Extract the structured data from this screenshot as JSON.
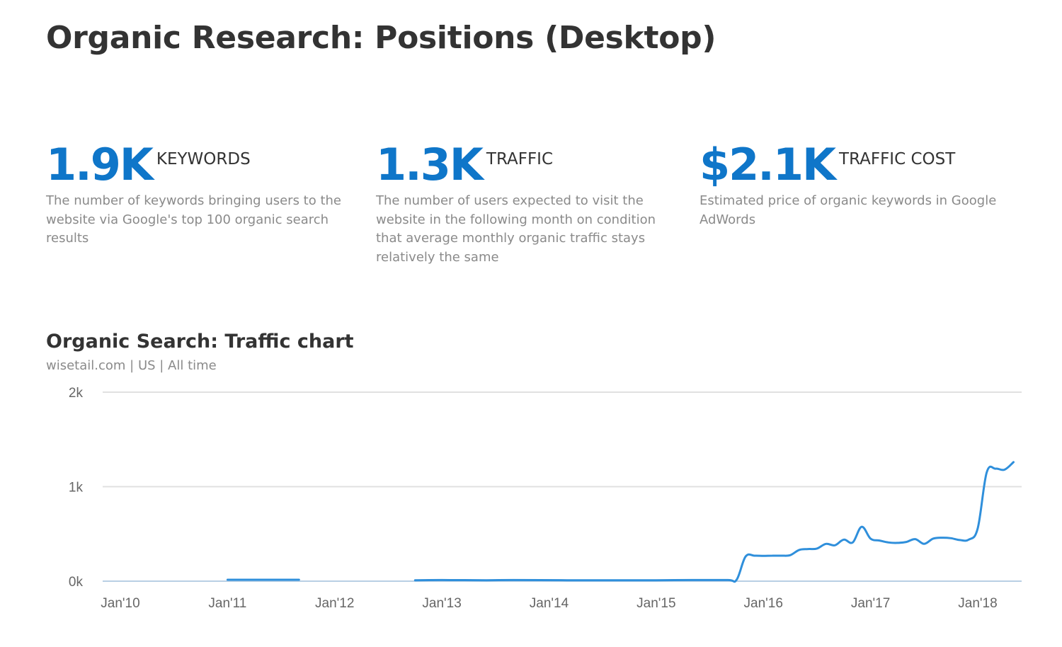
{
  "page": {
    "title": "Organic Research: Positions (Desktop)"
  },
  "metrics": [
    {
      "value": "1.9K",
      "label": "KEYWORDS",
      "description": "The number of keywords bringing users to the website via Google's top 100 organic search results"
    },
    {
      "value": "1.3K",
      "label": "TRAFFIC",
      "description": "The number of users expected to visit the website in the following month on condition that average monthly organic traffic stays relatively the same"
    },
    {
      "value": "$2.1K",
      "label": "TRAFFIC COST",
      "description": "Estimated price of organic keywords in Google AdWords"
    }
  ],
  "colors": {
    "accent": "#0f76c9",
    "line": "#2f8fdb",
    "grid": "#e0e0e0",
    "baseline": "#b9cfe4"
  },
  "chart_data": {
    "type": "line",
    "title": "Organic Search: Traffic chart",
    "subtitle": "wisetail.com | US | All time",
    "xlabel": "",
    "ylabel": "",
    "ylim": [
      0,
      2000
    ],
    "yticks": [
      {
        "value": 0,
        "label": "0k"
      },
      {
        "value": 1000,
        "label": "1k"
      },
      {
        "value": 2000,
        "label": "2k"
      }
    ],
    "xlim": [
      "2009-11",
      "2018-05"
    ],
    "xticks": [
      {
        "date": "2010-01",
        "label": "Jan'10"
      },
      {
        "date": "2011-01",
        "label": "Jan'11"
      },
      {
        "date": "2012-01",
        "label": "Jan'12"
      },
      {
        "date": "2013-01",
        "label": "Jan'13"
      },
      {
        "date": "2014-01",
        "label": "Jan'14"
      },
      {
        "date": "2015-01",
        "label": "Jan'15"
      },
      {
        "date": "2016-01",
        "label": "Jan'16"
      },
      {
        "date": "2017-01",
        "label": "Jan'17"
      },
      {
        "date": "2018-01",
        "label": "Jan'18"
      }
    ],
    "grid": true,
    "series": [
      {
        "segments": [
          [
            {
              "x": "2011-01",
              "y": 15
            },
            {
              "x": "2011-04",
              "y": 15
            },
            {
              "x": "2011-07",
              "y": 15
            },
            {
              "x": "2011-09",
              "y": 15
            }
          ],
          [
            {
              "x": "2012-10",
              "y": 10
            },
            {
              "x": "2013-01",
              "y": 12
            },
            {
              "x": "2013-06",
              "y": 10
            },
            {
              "x": "2013-09",
              "y": 12
            },
            {
              "x": "2014-03",
              "y": 10
            },
            {
              "x": "2014-09",
              "y": 10
            },
            {
              "x": "2015-01",
              "y": 10
            },
            {
              "x": "2015-05",
              "y": 12
            },
            {
              "x": "2015-09",
              "y": 12
            },
            {
              "x": "2015-10",
              "y": 15
            },
            {
              "x": "2015-11",
              "y": 260
            },
            {
              "x": "2015-12",
              "y": 270
            },
            {
              "x": "2016-01",
              "y": 268
            },
            {
              "x": "2016-02",
              "y": 270
            },
            {
              "x": "2016-03",
              "y": 270
            },
            {
              "x": "2016-04",
              "y": 275
            },
            {
              "x": "2016-05",
              "y": 330
            },
            {
              "x": "2016-06",
              "y": 340
            },
            {
              "x": "2016-07",
              "y": 345
            },
            {
              "x": "2016-08",
              "y": 395
            },
            {
              "x": "2016-09",
              "y": 380
            },
            {
              "x": "2016-10",
              "y": 440
            },
            {
              "x": "2016-11",
              "y": 410
            },
            {
              "x": "2016-12",
              "y": 575
            },
            {
              "x": "2017-01",
              "y": 450
            },
            {
              "x": "2017-02",
              "y": 430
            },
            {
              "x": "2017-03",
              "y": 410
            },
            {
              "x": "2017-04",
              "y": 405
            },
            {
              "x": "2017-05",
              "y": 415
            },
            {
              "x": "2017-06",
              "y": 445
            },
            {
              "x": "2017-07",
              "y": 395
            },
            {
              "x": "2017-08",
              "y": 450
            },
            {
              "x": "2017-09",
              "y": 460
            },
            {
              "x": "2017-10",
              "y": 455
            },
            {
              "x": "2017-11",
              "y": 435
            },
            {
              "x": "2017-12",
              "y": 440
            },
            {
              "x": "2018-01",
              "y": 560
            },
            {
              "x": "2018-02",
              "y": 1150
            },
            {
              "x": "2018-03",
              "y": 1190
            },
            {
              "x": "2018-04",
              "y": 1180
            },
            {
              "x": "2018-05",
              "y": 1260
            }
          ]
        ]
      }
    ]
  }
}
